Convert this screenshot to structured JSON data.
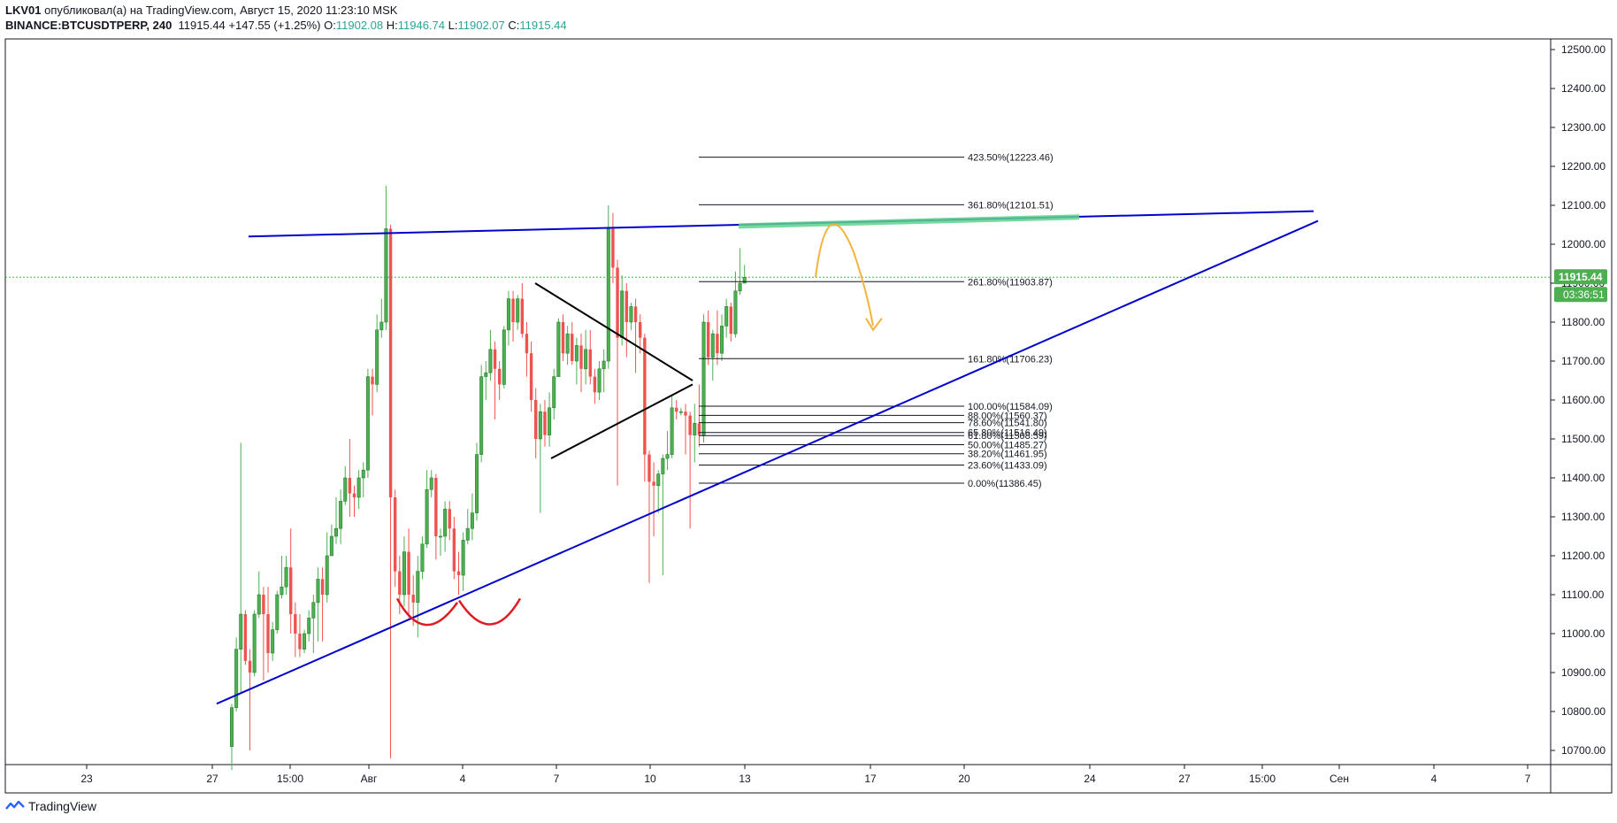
{
  "header": {
    "author": "LKV01",
    "published_text": "опубликовал(а) на TradingView.com, Август 15, 2020 11:23:10 MSK",
    "symbol": "BINANCE:BTCUSDTPERP, 240",
    "last": "11915.44",
    "change": "+147.55 (+1.25%)",
    "o_label": "O:",
    "o_value": "11902.08",
    "h_label": "H:",
    "h_value": "11946.74",
    "l_label": "L:",
    "l_value": "11902.07",
    "c_label": "C:",
    "c_value": "11915.44"
  },
  "footer": {
    "brand": "TradingView"
  },
  "colors": {
    "up": "#4caf50",
    "down": "#ef5350",
    "trend": "#0000cc",
    "price_line": "#4caf50",
    "fib": "#131722",
    "zone": "#5fd38d",
    "arrow": "#f2b43b",
    "shoulders": "#e01b24",
    "triangle": "#000000"
  },
  "chart_data": {
    "type": "candlestick",
    "symbol": "BINANCE:BTCUSDTPERP",
    "interval": "240",
    "ylim": [
      10650,
      12550
    ],
    "y_ticks": [
      "12500.00",
      "12400.00",
      "12300.00",
      "12200.00",
      "12100.00",
      "12000.00",
      "11900.00",
      "11800.00",
      "11700.00",
      "11600.00",
      "11500.00",
      "11400.00",
      "11300.00",
      "11200.00",
      "11100.00",
      "11000.00",
      "10900.00",
      "10800.00",
      "10700.00"
    ],
    "x_ticks": [
      "23",
      "27",
      "15:00",
      "Авг",
      "4",
      "7",
      "10",
      "13",
      "17",
      "20",
      "24",
      "27",
      "15:00",
      "Сен",
      "4",
      "7"
    ],
    "current_price": "11915.44",
    "countdown": "03:36:51",
    "fibonacci": [
      {
        "label": "423.50%(12223.46)",
        "price": 12223.46
      },
      {
        "label": "361.80%(12101.51)",
        "price": 12101.51
      },
      {
        "label": "261.80%(11903.87)",
        "price": 11903.87
      },
      {
        "label": "161.80%(11706.23)",
        "price": 11706.23
      },
      {
        "label": "100.00%(11584.09)",
        "price": 11584.09
      },
      {
        "label": "88.00%(11560.37)",
        "price": 11560.37
      },
      {
        "label": "78.60%(11541.80)",
        "price": 11541.8
      },
      {
        "label": "65.80%(11516.49)",
        "price": 11516.49
      },
      {
        "label": "61.80%(11508.59)",
        "price": 11508.59
      },
      {
        "label": "50.00%(11485.27)",
        "price": 11485.27
      },
      {
        "label": "38.20%(11461.95)",
        "price": 11461.95
      },
      {
        "label": "23.60%(11433.09)",
        "price": 11433.09
      },
      {
        "label": "0.00%(11386.45)",
        "price": 11386.45
      }
    ],
    "candles": [
      [
        10710,
        10810,
        10650,
        10820
      ],
      [
        10810,
        10960,
        10800,
        10990
      ],
      [
        10960,
        11050,
        10850,
        11490
      ],
      [
        11050,
        10930,
        10920,
        11060
      ],
      [
        10930,
        10900,
        10700,
        10960
      ],
      [
        10900,
        11050,
        10890,
        11060
      ],
      [
        11050,
        11100,
        11040,
        11160
      ],
      [
        11100,
        11050,
        10880,
        11120
      ],
      [
        11050,
        10950,
        10900,
        11120
      ],
      [
        10950,
        11010,
        10930,
        11030
      ],
      [
        11010,
        11100,
        11000,
        11110
      ],
      [
        11100,
        11120,
        11090,
        11200
      ],
      [
        11120,
        11170,
        11100,
        11200
      ],
      [
        11170,
        11050,
        11000,
        11270
      ],
      [
        11050,
        11000,
        10940,
        11080
      ],
      [
        11000,
        10960,
        10940,
        11050
      ],
      [
        10960,
        11000,
        10950,
        11010
      ],
      [
        11000,
        11040,
        10980,
        11060
      ],
      [
        11040,
        11080,
        10950,
        11100
      ],
      [
        11080,
        11140,
        10980,
        11170
      ],
      [
        11140,
        11100,
        10980,
        11170
      ],
      [
        11100,
        11200,
        11080,
        11260
      ],
      [
        11200,
        11250,
        11200,
        11280
      ],
      [
        11250,
        11270,
        11230,
        11350
      ],
      [
        11270,
        11340,
        11230,
        11370
      ],
      [
        11340,
        11400,
        11330,
        11430
      ],
      [
        11400,
        11360,
        11300,
        11500
      ],
      [
        11360,
        11350,
        11300,
        11380
      ],
      [
        11350,
        11400,
        11320,
        11420
      ],
      [
        11400,
        11420,
        11350,
        11440
      ],
      [
        11420,
        11660,
        11400,
        11680
      ],
      [
        11660,
        11640,
        11560,
        11680
      ],
      [
        11640,
        11780,
        11620,
        11820
      ],
      [
        11780,
        11800,
        11760,
        11860
      ],
      [
        11800,
        12040,
        11780,
        12150
      ],
      [
        12040,
        11350,
        10680,
        12050
      ],
      [
        11350,
        11160,
        11120,
        11370
      ],
      [
        11160,
        11100,
        11050,
        11200
      ],
      [
        11100,
        11210,
        11070,
        11250
      ],
      [
        11210,
        11100,
        11040,
        11270
      ],
      [
        11100,
        11080,
        11020,
        11150
      ],
      [
        11080,
        11160,
        10990,
        11200
      ],
      [
        11160,
        11230,
        11140,
        11250
      ],
      [
        11230,
        11370,
        11220,
        11420
      ],
      [
        11370,
        11400,
        11350,
        11420
      ],
      [
        11400,
        11250,
        11190,
        11410
      ],
      [
        11250,
        11250,
        11200,
        11270
      ],
      [
        11250,
        11320,
        11210,
        11340
      ],
      [
        11320,
        11270,
        11240,
        11340
      ],
      [
        11270,
        11160,
        11140,
        11300
      ],
      [
        11160,
        11150,
        11100,
        11210
      ],
      [
        11150,
        11240,
        11110,
        11260
      ],
      [
        11240,
        11270,
        11230,
        11320
      ],
      [
        11270,
        11310,
        11240,
        11360
      ],
      [
        11310,
        11460,
        11290,
        11490
      ],
      [
        11460,
        11660,
        11440,
        11690
      ],
      [
        11660,
        11670,
        11600,
        11700
      ],
      [
        11670,
        11730,
        11650,
        11780
      ],
      [
        11730,
        11680,
        11550,
        11750
      ],
      [
        11680,
        11640,
        11600,
        11700
      ],
      [
        11640,
        11780,
        11630,
        11790
      ],
      [
        11780,
        11860,
        11740,
        11880
      ],
      [
        11860,
        11800,
        11750,
        11880
      ],
      [
        11800,
        11860,
        11780,
        11870
      ],
      [
        11860,
        11770,
        11760,
        11900
      ],
      [
        11770,
        11720,
        11660,
        11800
      ],
      [
        11720,
        11600,
        11570,
        11750
      ],
      [
        11600,
        11500,
        11450,
        11630
      ],
      [
        11500,
        11570,
        11310,
        11590
      ],
      [
        11570,
        11510,
        11480,
        11600
      ],
      [
        11510,
        11580,
        11480,
        11620
      ],
      [
        11580,
        11660,
        11550,
        11680
      ],
      [
        11660,
        11800,
        11660,
        11810
      ],
      [
        11800,
        11720,
        11700,
        11820
      ],
      [
        11720,
        11770,
        11690,
        11790
      ],
      [
        11770,
        11700,
        11690,
        11800
      ],
      [
        11700,
        11740,
        11640,
        11760
      ],
      [
        11740,
        11680,
        11620,
        11770
      ],
      [
        11680,
        11730,
        11640,
        11780
      ],
      [
        11730,
        11660,
        11640,
        11780
      ],
      [
        11660,
        11620,
        11590,
        11680
      ],
      [
        11620,
        11680,
        11600,
        11700
      ],
      [
        11680,
        11700,
        11620,
        11730
      ],
      [
        11700,
        12040,
        11680,
        12100
      ],
      [
        12040,
        11940,
        11900,
        12080
      ],
      [
        11940,
        11760,
        11380,
        11960
      ],
      [
        11760,
        11880,
        11740,
        11920
      ],
      [
        11880,
        11800,
        11710,
        11900
      ],
      [
        11800,
        11840,
        11780,
        11850
      ],
      [
        11840,
        11800,
        11670,
        11860
      ],
      [
        11800,
        11760,
        11720,
        11820
      ],
      [
        11760,
        11460,
        11390,
        11770
      ],
      [
        11460,
        11390,
        11130,
        11470
      ],
      [
        11390,
        11380,
        11250,
        11440
      ],
      [
        11380,
        11410,
        11310,
        11420
      ],
      [
        11410,
        11450,
        11150,
        11460
      ],
      [
        11450,
        11460,
        11420,
        11520
      ],
      [
        11460,
        11580,
        11450,
        11610
      ],
      [
        11580,
        11570,
        11550,
        11600
      ],
      [
        11570,
        11570,
        11560,
        11580
      ],
      [
        11570,
        11560,
        11460,
        11590
      ],
      [
        11560,
        11510,
        11270,
        11570
      ],
      [
        11510,
        11540,
        11440,
        11590
      ],
      [
        11540,
        11510,
        11480,
        11640
      ],
      [
        11510,
        11800,
        11490,
        11820
      ],
      [
        11800,
        11710,
        11690,
        11830
      ],
      [
        11710,
        11770,
        11650,
        11780
      ],
      [
        11770,
        11720,
        11690,
        11830
      ],
      [
        11720,
        11790,
        11700,
        11820
      ],
      [
        11790,
        11840,
        11760,
        11860
      ],
      [
        11840,
        11770,
        11750,
        11850
      ],
      [
        11770,
        11880,
        11760,
        11930
      ],
      [
        11880,
        11900,
        11870,
        11990
      ],
      [
        11900,
        11915,
        11900,
        11947
      ]
    ]
  }
}
